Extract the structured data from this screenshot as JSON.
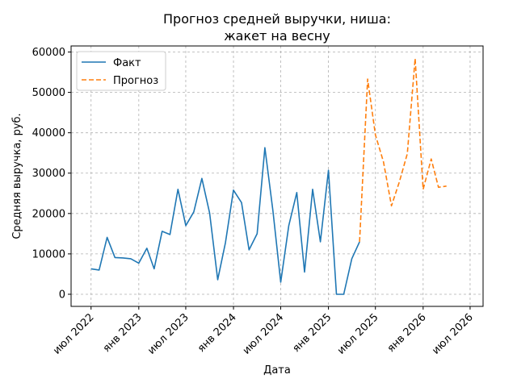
{
  "chart_data": {
    "type": "line",
    "title_lines": [
      "Прогноз средней выручки, ниша:",
      "жакет на весну"
    ],
    "xlabel": "Дата",
    "ylabel": "Средняя выручка, руб.",
    "grid": true,
    "legend_position": "top-left",
    "ylim": [
      -3000,
      61500
    ],
    "xlim": [
      "2022-04-15",
      "2026-08-20"
    ],
    "y_ticks": [
      0,
      10000,
      20000,
      30000,
      40000,
      50000,
      60000
    ],
    "y_tick_labels": [
      "0",
      "10000",
      "20000",
      "30000",
      "40000",
      "50000",
      "60000"
    ],
    "x_ticks": [
      {
        "date": "2022-07-01",
        "label": "июл 2022"
      },
      {
        "date": "2023-01-01",
        "label": "янв 2023"
      },
      {
        "date": "2023-07-01",
        "label": "июл 2023"
      },
      {
        "date": "2024-01-01",
        "label": "янв 2024"
      },
      {
        "date": "2024-07-01",
        "label": "июл 2024"
      },
      {
        "date": "2025-01-01",
        "label": "янв 2025"
      },
      {
        "date": "2025-07-01",
        "label": "июл 2025"
      },
      {
        "date": "2026-01-01",
        "label": "янв 2026"
      },
      {
        "date": "2026-07-01",
        "label": "июл 2026"
      }
    ],
    "series": [
      {
        "name": "Факт",
        "color": "#1f77b4",
        "style": "solid",
        "x": [
          "2022-07-01",
          "2022-08-01",
          "2022-09-01",
          "2022-10-01",
          "2022-11-01",
          "2022-12-01",
          "2023-01-01",
          "2023-02-01",
          "2023-03-01",
          "2023-04-01",
          "2023-05-01",
          "2023-06-01",
          "2023-07-01",
          "2023-08-01",
          "2023-09-01",
          "2023-10-01",
          "2023-11-01",
          "2023-12-01",
          "2024-01-01",
          "2024-02-01",
          "2024-03-01",
          "2024-04-01",
          "2024-05-01",
          "2024-06-01",
          "2024-07-01",
          "2024-08-01",
          "2024-09-01",
          "2024-10-01",
          "2024-11-01",
          "2024-12-01",
          "2025-01-01",
          "2025-02-01",
          "2025-03-01",
          "2025-04-01",
          "2025-05-01"
        ],
        "y": [
          6300,
          6000,
          14100,
          9100,
          9000,
          8800,
          7700,
          11400,
          6300,
          15600,
          14800,
          26000,
          17000,
          20400,
          28700,
          20100,
          3600,
          12800,
          25800,
          22700,
          11000,
          15000,
          36300,
          20600,
          3000,
          17000,
          25200,
          5500,
          26000,
          13000,
          30700,
          0,
          0,
          8800,
          13000
        ]
      },
      {
        "name": "Прогноз",
        "color": "#ff7f0e",
        "style": "dashed",
        "x": [
          "2025-05-01",
          "2025-06-01",
          "2025-07-01",
          "2025-08-01",
          "2025-09-01",
          "2025-10-01",
          "2025-11-01",
          "2025-12-01",
          "2026-01-01",
          "2026-02-01",
          "2026-03-01",
          "2026-04-01"
        ],
        "y": [
          13000,
          53300,
          39500,
          32800,
          21900,
          27800,
          34800,
          58400,
          26000,
          33500,
          26500,
          26800
        ]
      }
    ]
  }
}
